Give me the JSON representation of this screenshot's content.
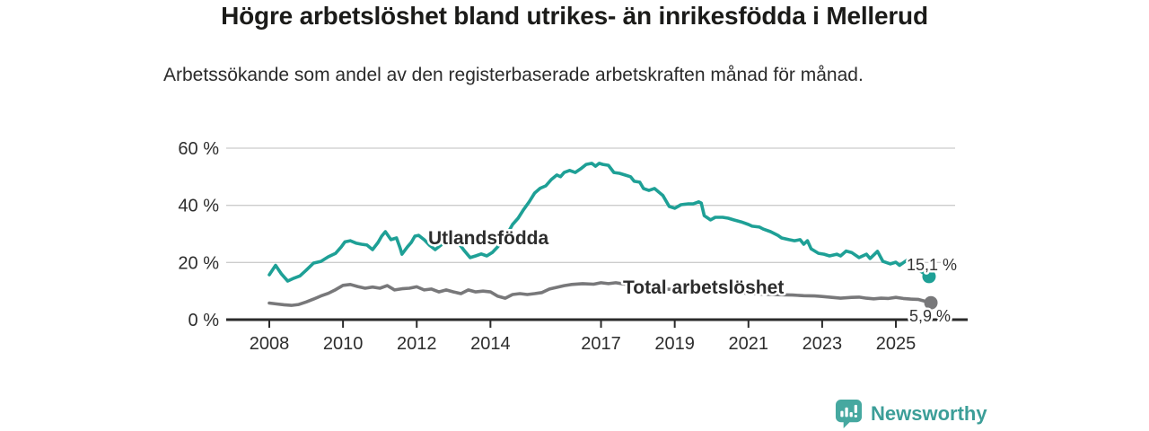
{
  "title": "Högre arbetslöshet bland utrikes- än inrikesfödda i Mellerud",
  "subtitle": "Arbetssökande som andel av den registerbaserade arbetskraften månad för månad.",
  "branding": {
    "logo_text": "Newsworthy",
    "logo_icon": "bar-chart-speech-bubble-icon",
    "logo_color": "#3c9e98"
  },
  "colors": {
    "foreign_born_line": "#1ea096",
    "total_line": "#78787a",
    "total_label": "#69696e",
    "end_label": "#333333",
    "axis": "#2b2b2b",
    "grid": "#cccccc",
    "title": "#1b1b19"
  },
  "chart_data": {
    "type": "line",
    "title": "Högre arbetslöshet bland utrikes- än inrikesfödda i Mellerud",
    "subtitle": "Arbetssökande som andel av den registerbaserade arbetskraften månad för månad.",
    "unit": "%",
    "grid": true,
    "legend_position": "inline-labels",
    "x_axis": {
      "ticks": [
        2008,
        2010,
        2012,
        2014,
        2017,
        2019,
        2021,
        2023,
        2025
      ],
      "range": [
        2006.9,
        2026.9
      ]
    },
    "y_axis": {
      "ticks": [
        0,
        20,
        40,
        60
      ],
      "tick_suffix": " %",
      "range": [
        0,
        60
      ]
    },
    "series": [
      {
        "name": "Utlandsfödda",
        "color": "#1ea096",
        "end_label": "15,1 %",
        "end_value": 15.1,
        "points": [
          [
            2008.0,
            15.7
          ],
          [
            2008.17,
            19.0
          ],
          [
            2008.33,
            16.0
          ],
          [
            2008.5,
            13.5
          ],
          [
            2008.67,
            14.5
          ],
          [
            2008.83,
            15.3
          ],
          [
            2009.0,
            17.3
          ],
          [
            2009.2,
            19.8
          ],
          [
            2009.4,
            20.4
          ],
          [
            2009.6,
            22.0
          ],
          [
            2009.8,
            23.2
          ],
          [
            2009.95,
            25.4
          ],
          [
            2010.05,
            27.2
          ],
          [
            2010.2,
            27.6
          ],
          [
            2010.35,
            26.8
          ],
          [
            2010.5,
            26.4
          ],
          [
            2010.65,
            26.1
          ],
          [
            2010.8,
            24.5
          ],
          [
            2010.95,
            27.0
          ],
          [
            2011.05,
            29.2
          ],
          [
            2011.15,
            30.8
          ],
          [
            2011.3,
            28.0
          ],
          [
            2011.45,
            28.6
          ],
          [
            2011.55,
            25.0
          ],
          [
            2011.6,
            22.9
          ],
          [
            2011.75,
            25.5
          ],
          [
            2011.85,
            27.0
          ],
          [
            2011.95,
            29.2
          ],
          [
            2012.05,
            29.5
          ],
          [
            2012.2,
            28.0
          ],
          [
            2012.35,
            26.0
          ],
          [
            2012.5,
            24.5
          ],
          [
            2012.65,
            26.0
          ],
          [
            2012.8,
            27.5
          ],
          [
            2013.0,
            28.5
          ],
          [
            2013.15,
            26.5
          ],
          [
            2013.3,
            24.0
          ],
          [
            2013.45,
            21.7
          ],
          [
            2013.6,
            22.3
          ],
          [
            2013.75,
            23.0
          ],
          [
            2013.9,
            22.3
          ],
          [
            2014.05,
            23.5
          ],
          [
            2014.2,
            25.5
          ],
          [
            2014.35,
            28.5
          ],
          [
            2014.5,
            31.0
          ],
          [
            2014.6,
            33.3
          ],
          [
            2014.75,
            35.5
          ],
          [
            2014.9,
            38.5
          ],
          [
            2015.05,
            41.2
          ],
          [
            2015.2,
            44.3
          ],
          [
            2015.35,
            46.0
          ],
          [
            2015.5,
            46.8
          ],
          [
            2015.65,
            49.0
          ],
          [
            2015.8,
            50.6
          ],
          [
            2015.9,
            50.0
          ],
          [
            2016.0,
            51.5
          ],
          [
            2016.15,
            52.2
          ],
          [
            2016.3,
            51.5
          ],
          [
            2016.45,
            52.8
          ],
          [
            2016.6,
            54.3
          ],
          [
            2016.75,
            54.7
          ],
          [
            2016.85,
            53.7
          ],
          [
            2016.95,
            54.7
          ],
          [
            2017.05,
            54.3
          ],
          [
            2017.2,
            54.0
          ],
          [
            2017.35,
            51.5
          ],
          [
            2017.5,
            51.2
          ],
          [
            2017.65,
            50.6
          ],
          [
            2017.8,
            50.0
          ],
          [
            2017.9,
            48.4
          ],
          [
            2018.05,
            48.1
          ],
          [
            2018.15,
            45.9
          ],
          [
            2018.3,
            45.2
          ],
          [
            2018.45,
            45.9
          ],
          [
            2018.6,
            44.3
          ],
          [
            2018.68,
            43.4
          ],
          [
            2018.85,
            39.6
          ],
          [
            2019.0,
            39.0
          ],
          [
            2019.17,
            40.2
          ],
          [
            2019.35,
            40.5
          ],
          [
            2019.5,
            40.5
          ],
          [
            2019.65,
            41.2
          ],
          [
            2019.72,
            40.8
          ],
          [
            2019.8,
            36.4
          ],
          [
            2019.97,
            34.9
          ],
          [
            2020.1,
            35.8
          ],
          [
            2020.3,
            35.8
          ],
          [
            2020.45,
            35.5
          ],
          [
            2020.6,
            34.9
          ],
          [
            2020.8,
            34.2
          ],
          [
            2021.0,
            33.3
          ],
          [
            2021.1,
            32.7
          ],
          [
            2021.3,
            32.4
          ],
          [
            2021.4,
            31.7
          ],
          [
            2021.6,
            30.8
          ],
          [
            2021.8,
            29.5
          ],
          [
            2021.9,
            28.6
          ],
          [
            2022.1,
            28.0
          ],
          [
            2022.25,
            27.6
          ],
          [
            2022.4,
            28.0
          ],
          [
            2022.5,
            26.4
          ],
          [
            2022.6,
            27.6
          ],
          [
            2022.7,
            24.8
          ],
          [
            2022.9,
            23.2
          ],
          [
            2023.05,
            22.9
          ],
          [
            2023.2,
            22.3
          ],
          [
            2023.4,
            22.9
          ],
          [
            2023.5,
            22.3
          ],
          [
            2023.65,
            24.0
          ],
          [
            2023.8,
            23.5
          ],
          [
            2024.0,
            21.7
          ],
          [
            2024.2,
            22.9
          ],
          [
            2024.3,
            21.4
          ],
          [
            2024.5,
            23.9
          ],
          [
            2024.65,
            20.4
          ],
          [
            2024.85,
            19.5
          ],
          [
            2025.0,
            20.1
          ],
          [
            2025.1,
            19.0
          ],
          [
            2025.3,
            20.8
          ],
          [
            2025.45,
            19.2
          ],
          [
            2025.6,
            17.5
          ],
          [
            2025.9,
            15.1
          ]
        ]
      },
      {
        "name": "Total arbetslöshet",
        "color": "#78787a",
        "end_label": "5,9 %",
        "end_value": 5.9,
        "points": [
          [
            2008.0,
            5.8
          ],
          [
            2008.2,
            5.5
          ],
          [
            2008.4,
            5.2
          ],
          [
            2008.6,
            5.0
          ],
          [
            2008.8,
            5.3
          ],
          [
            2009.0,
            6.2
          ],
          [
            2009.2,
            7.2
          ],
          [
            2009.4,
            8.3
          ],
          [
            2009.6,
            9.2
          ],
          [
            2009.8,
            10.5
          ],
          [
            2010.0,
            12.0
          ],
          [
            2010.2,
            12.3
          ],
          [
            2010.4,
            11.6
          ],
          [
            2010.6,
            11.0
          ],
          [
            2010.8,
            11.4
          ],
          [
            2011.0,
            11.0
          ],
          [
            2011.2,
            11.9
          ],
          [
            2011.4,
            10.4
          ],
          [
            2011.6,
            10.8
          ],
          [
            2011.8,
            11.0
          ],
          [
            2012.0,
            11.5
          ],
          [
            2012.2,
            10.4
          ],
          [
            2012.4,
            10.7
          ],
          [
            2012.6,
            9.7
          ],
          [
            2012.8,
            10.4
          ],
          [
            2013.0,
            9.7
          ],
          [
            2013.2,
            9.1
          ],
          [
            2013.4,
            10.4
          ],
          [
            2013.6,
            9.7
          ],
          [
            2013.8,
            10.0
          ],
          [
            2014.0,
            9.7
          ],
          [
            2014.2,
            8.2
          ],
          [
            2014.4,
            7.5
          ],
          [
            2014.6,
            8.8
          ],
          [
            2014.8,
            9.1
          ],
          [
            2015.0,
            8.8
          ],
          [
            2015.2,
            9.1
          ],
          [
            2015.4,
            9.5
          ],
          [
            2015.6,
            10.7
          ],
          [
            2015.8,
            11.3
          ],
          [
            2016.0,
            11.9
          ],
          [
            2016.2,
            12.3
          ],
          [
            2016.5,
            12.6
          ],
          [
            2016.8,
            12.4
          ],
          [
            2017.0,
            12.9
          ],
          [
            2017.2,
            12.6
          ],
          [
            2017.4,
            12.9
          ],
          [
            2017.6,
            12.5
          ],
          [
            2017.8,
            12.2
          ],
          [
            2018.0,
            11.8
          ],
          [
            2018.3,
            11.3
          ],
          [
            2018.6,
            10.9
          ],
          [
            2018.9,
            10.6
          ],
          [
            2019.2,
            10.3
          ],
          [
            2019.5,
            10.0
          ],
          [
            2019.8,
            9.7
          ],
          [
            2020.0,
            9.5
          ],
          [
            2020.2,
            9.9
          ],
          [
            2020.5,
            9.7
          ],
          [
            2020.8,
            9.4
          ],
          [
            2021.0,
            9.2
          ],
          [
            2021.3,
            9.0
          ],
          [
            2021.6,
            8.8
          ],
          [
            2021.9,
            8.7
          ],
          [
            2022.2,
            8.6
          ],
          [
            2022.5,
            8.4
          ],
          [
            2022.8,
            8.3
          ],
          [
            2023.0,
            8.1
          ],
          [
            2023.2,
            7.9
          ],
          [
            2023.5,
            7.5
          ],
          [
            2023.8,
            7.8
          ],
          [
            2024.0,
            7.9
          ],
          [
            2024.2,
            7.5
          ],
          [
            2024.4,
            7.3
          ],
          [
            2024.6,
            7.5
          ],
          [
            2024.8,
            7.4
          ],
          [
            2025.0,
            7.8
          ],
          [
            2025.2,
            7.4
          ],
          [
            2025.4,
            7.2
          ],
          [
            2025.6,
            7.1
          ],
          [
            2025.95,
            5.9
          ]
        ]
      }
    ]
  }
}
